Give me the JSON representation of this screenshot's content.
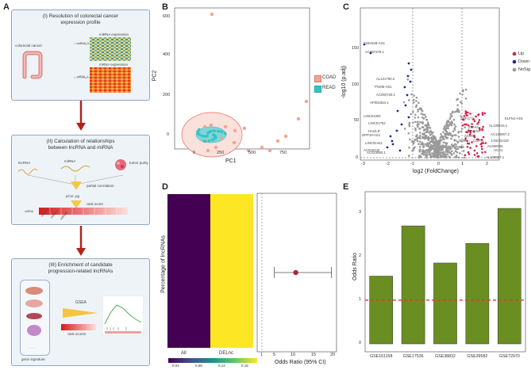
{
  "panel_labels": {
    "a": "A",
    "b": "B",
    "c": "C",
    "d": "D",
    "e": "E"
  },
  "workflow": {
    "step1": {
      "title_line1": "(I) Resolution of colorectal cancer",
      "title_line2": "expression profile",
      "organ_label": "colorectal cancer",
      "mirna_label": "miRNA expression",
      "mrna_label": "mRNA expression",
      "mirna_row": "miRNA_1",
      "mrna_row": "mRNA_1"
    },
    "step2": {
      "title_line1": "(II) Calculation of relationships",
      "title_line2": "between lncRNA and miRNA",
      "lncrna_label": "lncRNA",
      "mirna_label": "miRNA",
      "purity_label": "tumor purity",
      "partial_label": "partial correlation",
      "pcor_label": "pCor, pg",
      "rank_label": "rank score",
      "mirna_row": "miRNA",
      "rank_genes": [
        "miRNA1",
        "miRNA2",
        "miRNA3"
      ]
    },
    "step3": {
      "title_line1": "(III) Enrichment of candidate",
      "title_line2": "progression-related lncRNAs",
      "gsea_label": "GSEA",
      "rank_scores_label": "rank scores",
      "dots": "· · ·",
      "gene_sig_label": "gene signature"
    }
  },
  "pca": {
    "ylabel": "PC2",
    "xlabel": "PC1",
    "xticks": [
      "0",
      "250",
      "500",
      "750"
    ],
    "yticks": [
      "0",
      "200",
      "400",
      "600"
    ],
    "legend": [
      {
        "label": "COAD",
        "color": "#f4a391"
      },
      {
        "label": "READ",
        "color": "#36c2c4"
      }
    ]
  },
  "volcano": {
    "ylabel": "-log10 (p.adj)",
    "xlabel": "log2 (FoldChange)",
    "xticks": [
      "-3",
      "-2",
      "-1",
      "0",
      "1",
      "2"
    ],
    "yticks": [
      "0",
      "50",
      "100",
      "150"
    ],
    "legend": [
      {
        "label": "Up",
        "color": "#d6234a"
      },
      {
        "label": "Down",
        "color": "#1d2a8f"
      },
      {
        "label": "NoSig",
        "color": "#9a9a9a"
      }
    ],
    "labels_down": [
      "CDKN2B-AS1",
      "AC087379.1",
      "AL121790.2",
      "PGM5-AS1",
      "AC092720.1",
      "AP001554.1",
      "LINC01082",
      "LINC01752",
      "HAGLR",
      "DPP10-AS1",
      "LINC02441",
      "AC016442",
      "AC023850.1"
    ],
    "labels_up": [
      "ELFN1-AS1",
      "ZNF(17)",
      "AL109615.1",
      "AC124067.2",
      "LINC02418",
      "AL590025",
      "LINC01",
      "ZFAS1",
      "AC091",
      "CCAT1",
      "UCA1",
      "AL109827.1",
      "AL3500",
      "CRNDE"
    ]
  },
  "heat": {
    "ylabel": "Percentage of lncRNAs",
    "cats": [
      "All",
      "DELnc"
    ],
    "colorbar_ticks": [
      "0.04",
      "0.08",
      "0.12",
      "0.16"
    ],
    "colors": [
      "#440154",
      "#fde725"
    ]
  },
  "odds_ci": {
    "xlabel": "Odds Ratio (95% CI)",
    "xticks": [
      "1",
      "5",
      "10",
      "15",
      "20"
    ],
    "estimate": 10,
    "lower": 4.3,
    "upper": 19.5
  },
  "chart_data": [
    {
      "type": "bar",
      "title": "",
      "xlabel": "",
      "ylabel": "Odds Ratio",
      "categories": [
        "GSE161158",
        "GSE17536",
        "GSE38832",
        "GSE39582",
        "GSE72970"
      ],
      "values": [
        1.55,
        2.7,
        1.85,
        2.3,
        3.1
      ],
      "ylim": [
        0,
        3.3
      ],
      "yticks": [
        "0",
        "1",
        "2",
        "3"
      ],
      "reference_line": 1,
      "bar_color": "#6b8e23",
      "ref_color": "#e03a2a"
    }
  ]
}
